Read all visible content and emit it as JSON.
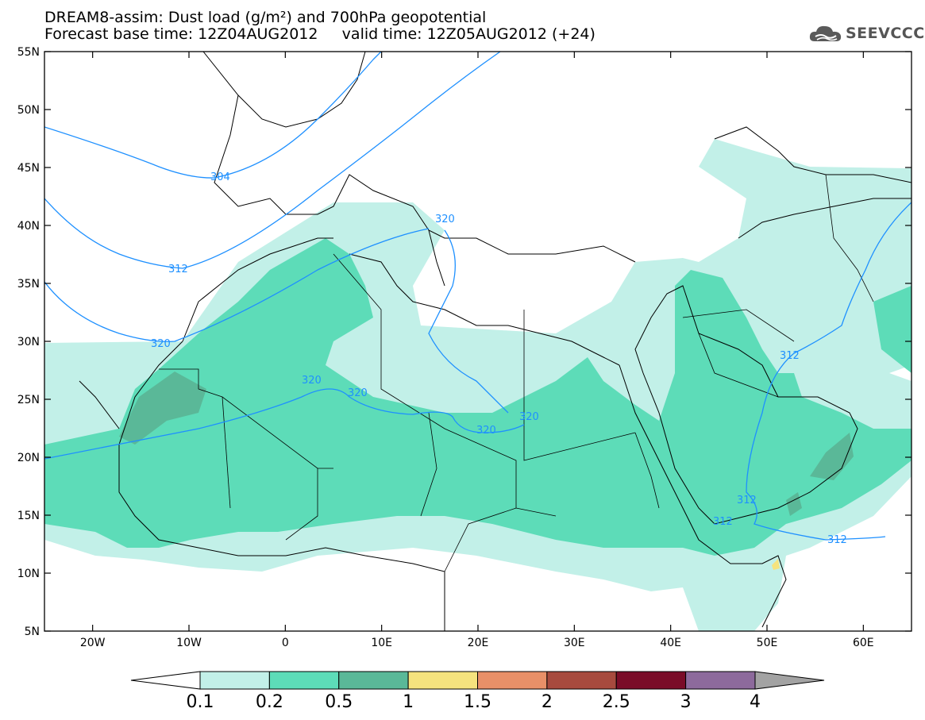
{
  "title_line1": "DREAM8-assim: Dust load (g/m²) and 700hPa geopotential",
  "title_line2": "Forecast base time: 12Z04AUG2012     valid time: 12Z05AUG2012 (+24)",
  "logo_text": "SEEVCCC",
  "logo_icon": "cloud-logo-icon",
  "map": {
    "lon_range": [
      -25,
      65
    ],
    "lat_range": [
      5,
      55
    ],
    "lon_tick_labels": [
      "20W",
      "10W",
      "0",
      "10E",
      "20E",
      "30E",
      "40E",
      "50E",
      "60E"
    ],
    "lat_tick_labels": [
      "5N",
      "10N",
      "15N",
      "20N",
      "25N",
      "30N",
      "35N",
      "40N",
      "45N",
      "50N",
      "55N"
    ],
    "contour_labels": [
      "304",
      "312",
      "320",
      "320",
      "320",
      "320",
      "320",
      "320",
      "312",
      "312",
      "312",
      "312"
    ]
  },
  "colorbar": {
    "labels": [
      "0.1",
      "0.2",
      "0.5",
      "1",
      "1.5",
      "2",
      "2.5",
      "3",
      "4"
    ],
    "colors": [
      "#ffffff",
      "#c2f0e8",
      "#5ddcb8",
      "#5ab898",
      "#f5e37e",
      "#e89068",
      "#a74a3e",
      "#7a0c28",
      "#8d6a9c",
      "#a3a3a3"
    ]
  }
}
